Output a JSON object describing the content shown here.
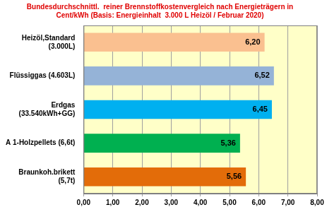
{
  "chart_data": {
    "type": "bar",
    "orientation": "horizontal",
    "title": [
      "Bundesdurchschnittl.  reiner Brennstoffkostenvergleich nach Energieträgern in",
      "Cent/kWh (Basis: Energieinhalt  3.000 L Heizöl / Februar 2020)"
    ],
    "categories": [
      "Heizöl,Standard\n(3.000L)",
      "Flüssiggas (4.603L)",
      "Erdgas\n(33.540kWh+GG)",
      "A 1-Holzpellets (6,6t)",
      "Braunkoh.brikett\n(5,7t)"
    ],
    "values": [
      6.2,
      6.52,
      6.45,
      5.36,
      5.56
    ],
    "value_labels": [
      "6,20",
      "6,52",
      "6,45",
      "5,36",
      "5,56"
    ],
    "colors": [
      "#fac090",
      "#95b3d7",
      "#00b0f0",
      "#00b050",
      "#e36c09"
    ],
    "xlim": [
      0,
      8
    ],
    "xticks": [
      {
        "value": 0,
        "label": "0,00"
      },
      {
        "value": 1,
        "label": "1,00"
      },
      {
        "value": 2,
        "label": "2,00"
      },
      {
        "value": 3,
        "label": "3,00"
      },
      {
        "value": 4,
        "label": "4,00"
      },
      {
        "value": 5,
        "label": "5,00"
      },
      {
        "value": 6,
        "label": "6,00"
      },
      {
        "value": 7,
        "label": "7,00"
      },
      {
        "value": 8,
        "label": "8,00"
      }
    ],
    "grid": true,
    "data_labels": true
  }
}
